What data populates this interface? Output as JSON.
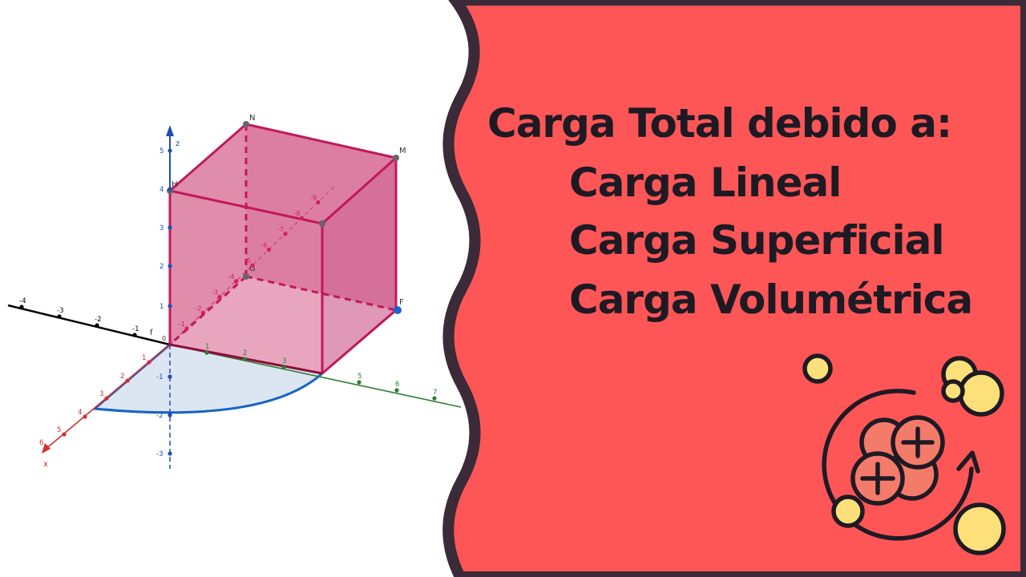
{
  "colors": {
    "panel": "#fe5656",
    "panel_border": "#3b2a38",
    "cube_fill": "#d35c89",
    "cube_edge": "#c2185b",
    "x_axis": "#d32f2f",
    "y_axis": "#2e7d32",
    "z_axis": "#1e4fb8",
    "neg_y_axis": "#000000",
    "sector_fill": "#dce6f2",
    "sector_edge": "#1565c0",
    "text": "#1e1a24",
    "bubble_yellow": "#fde07a",
    "bubble_coral": "#f47a6a"
  },
  "headline": {
    "lines": [
      "Carga Total debido a:",
      "Carga Lineal",
      "Carga Superficial",
      "Carga Volumétrica"
    ]
  },
  "diagram": {
    "axis_names": {
      "x": "x",
      "z": "z",
      "f": "f"
    },
    "point_labels": {
      "N": "N",
      "M": "M",
      "H": "H",
      "G": "G",
      "F": "F",
      "O": "0"
    },
    "x_ticks": [
      "1",
      "2",
      "3",
      "4",
      "5",
      "6"
    ],
    "y_ticks": [
      "1",
      "2",
      "3",
      "5",
      "6",
      "7"
    ],
    "y_neg_ticks": [
      "-1",
      "-2",
      "-3",
      "-4"
    ],
    "z_ticks": [
      "1",
      "2",
      "3",
      "4",
      "5"
    ],
    "z_neg_ticks": [
      "-1",
      "-2",
      "-3"
    ],
    "depth_ticks": [
      "-1",
      "-2",
      "-3",
      "-4",
      "-5",
      "-6",
      "-7",
      "-8",
      "-9"
    ]
  },
  "icon": {
    "name": "charged-particles-icon",
    "symbols": [
      "+",
      "+"
    ]
  }
}
